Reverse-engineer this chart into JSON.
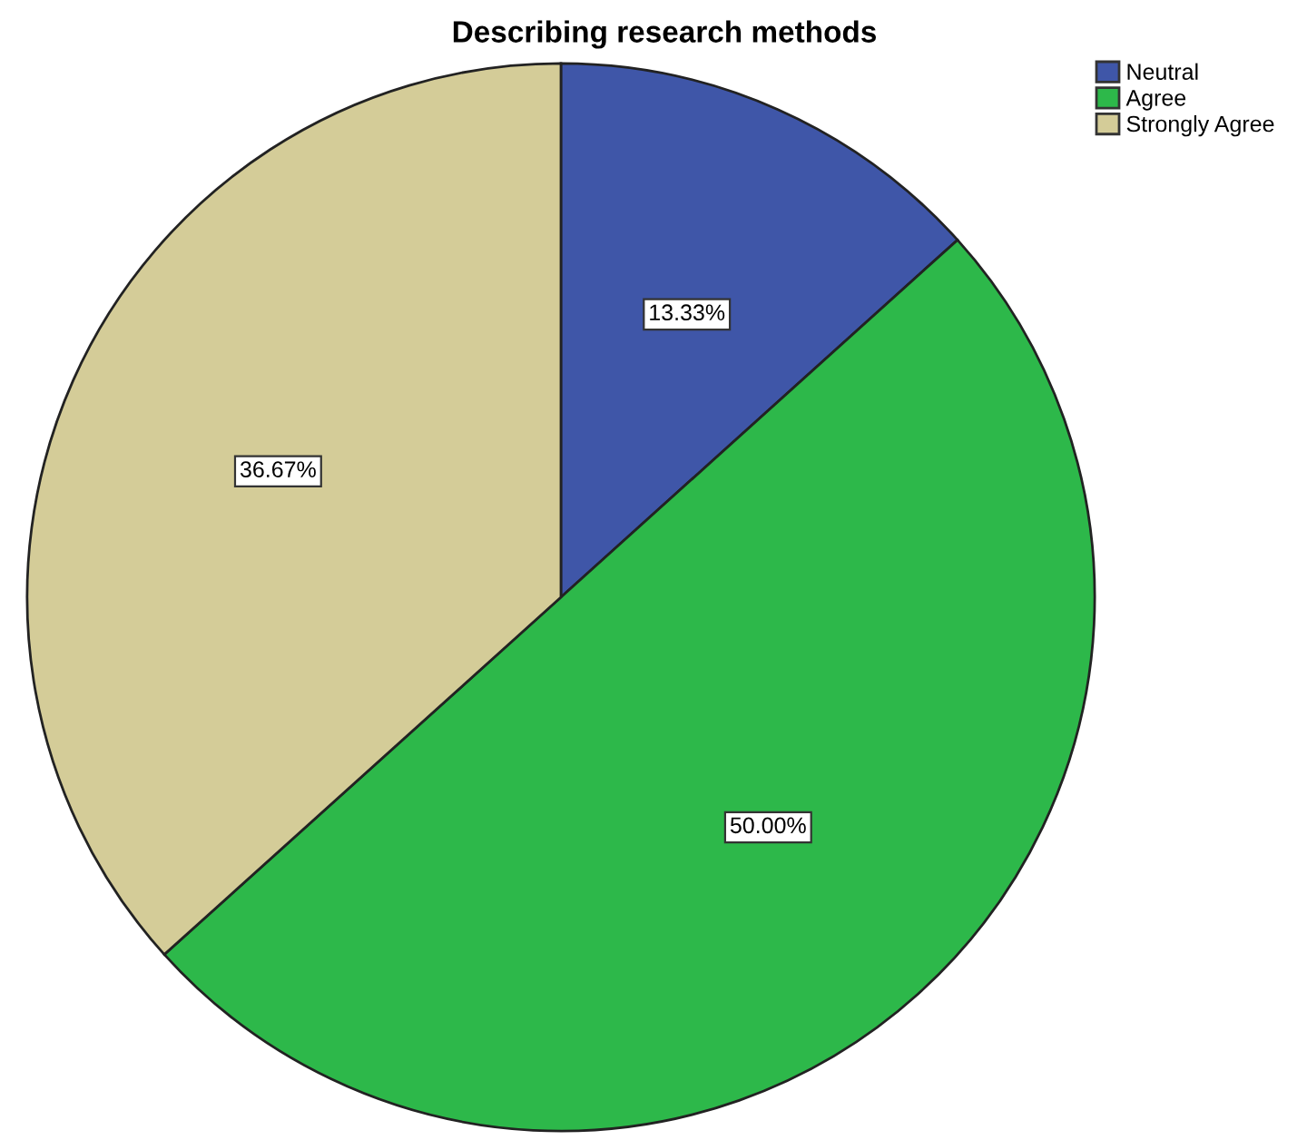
{
  "chart_data": {
    "type": "pie",
    "title": "Describing research methods",
    "categories": [
      "Neutral",
      "Agree",
      "Strongly Agree"
    ],
    "values": [
      13.33,
      50.0,
      36.67
    ],
    "colors": [
      "#3f56a8",
      "#2db84a",
      "#d4cc98"
    ],
    "value_labels": [
      "13.33%",
      "50.00%",
      "36.67%"
    ],
    "legend": "top right"
  }
}
